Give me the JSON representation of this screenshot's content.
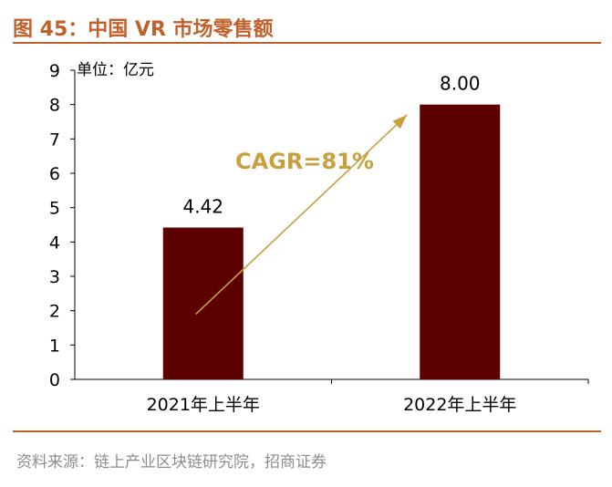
{
  "figure": {
    "title": "图 45：中国 VR 市场零售额",
    "source": "资料来源：链上产业区块链研究院，招商证券"
  },
  "chart_data": {
    "type": "bar",
    "title": "中国 VR 市场零售额",
    "unit_label": "单位：亿元",
    "categories": [
      "2021年上半年",
      "2022年上半年"
    ],
    "values": [
      4.42,
      8.0
    ],
    "value_labels": [
      "4.42",
      "8.00"
    ],
    "ylim": [
      0,
      9
    ],
    "yticks": [
      0,
      1,
      2,
      3,
      4,
      5,
      6,
      7,
      8,
      9
    ],
    "annotation": "CAGR=81%",
    "bar_color": "#5c0000",
    "arrow_color": "#c8a040"
  }
}
